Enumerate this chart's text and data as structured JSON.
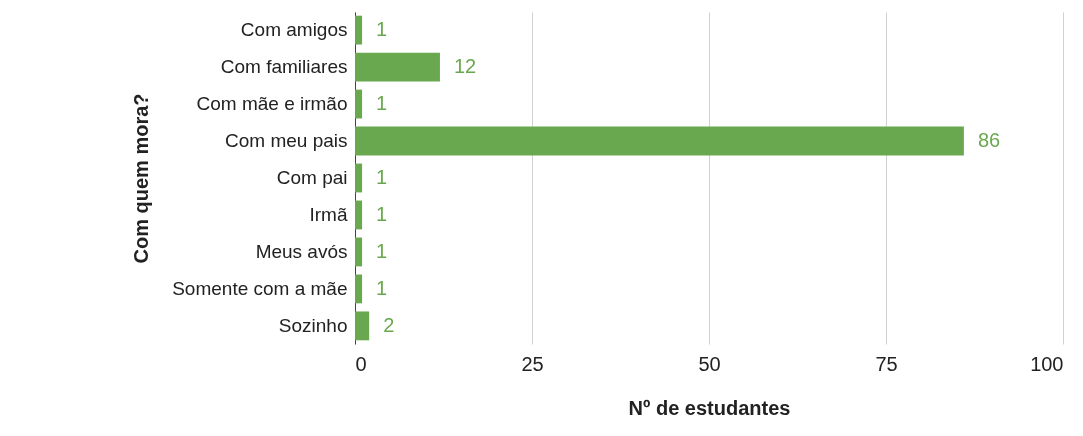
{
  "chart_data": {
    "type": "bar",
    "orientation": "horizontal",
    "xlabel": "Nº de estudantes",
    "ylabel": "Com quem mora?",
    "categories": [
      "Com amigos",
      "Com familiares",
      "Com mãe e irmão",
      "Com meu pais",
      "Com pai",
      "Irmã",
      "Meus avós",
      "Somente com a mãe",
      "Sozinho"
    ],
    "values": [
      1,
      12,
      1,
      86,
      1,
      1,
      1,
      1,
      2
    ],
    "color": "#6aa84f",
    "xlim": [
      0,
      100
    ],
    "xticks": [
      0,
      25,
      50,
      75,
      100
    ],
    "grid": "x",
    "data_labels": true
  }
}
